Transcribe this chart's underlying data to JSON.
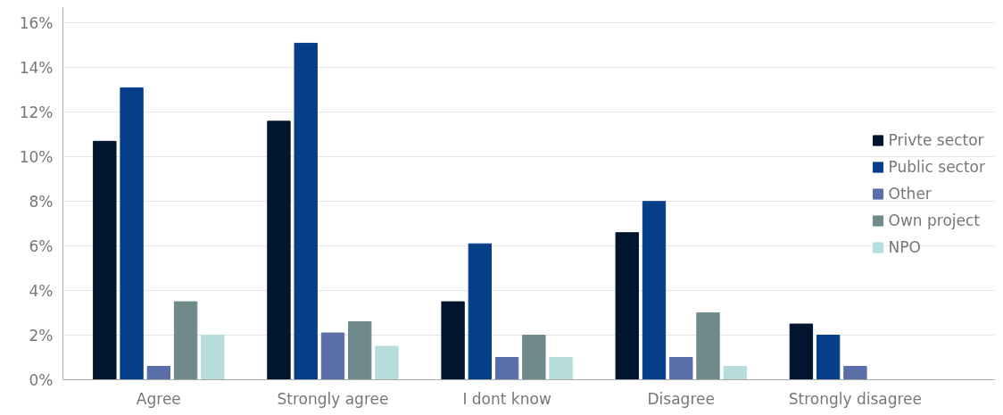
{
  "chart_data": {
    "type": "bar",
    "categories": [
      "Agree",
      "Strongly agree",
      "I dont know",
      "Disagree",
      "Strongly disagree"
    ],
    "series": [
      {
        "name": "Privte sector",
        "color": "#01162e",
        "values": [
          10.7,
          11.6,
          3.5,
          6.6,
          2.5
        ]
      },
      {
        "name": "Public sector",
        "color": "#053f8a",
        "values": [
          13.1,
          15.1,
          6.1,
          8.0,
          2.0
        ]
      },
      {
        "name": "Other",
        "color": "#5a6ea8",
        "values": [
          0.6,
          2.1,
          1.0,
          1.0,
          0.6
        ]
      },
      {
        "name": "Own project",
        "color": "#6f8a8b",
        "values": [
          3.5,
          2.6,
          2.0,
          3.0,
          null
        ]
      },
      {
        "name": "NPO",
        "color": "#b6dcdc",
        "values": [
          2.0,
          1.5,
          1.0,
          0.6,
          null
        ]
      }
    ],
    "ylim": [
      0,
      16.7
    ],
    "yticks": [
      {
        "value": 0,
        "label": "0%"
      },
      {
        "value": 2,
        "label": "2%"
      },
      {
        "value": 4,
        "label": "4%"
      },
      {
        "value": 6,
        "label": "6%"
      },
      {
        "value": 8,
        "label": "8%"
      },
      {
        "value": 10,
        "label": "10%"
      },
      {
        "value": 12,
        "label": "12%"
      },
      {
        "value": 14,
        "label": "14%"
      },
      {
        "value": 16,
        "label": "16%"
      }
    ],
    "grid": "y",
    "legend": "right"
  }
}
